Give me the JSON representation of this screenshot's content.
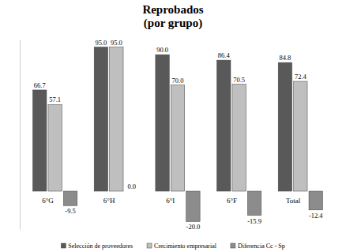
{
  "chart_data": {
    "type": "bar",
    "title": "Reprobados",
    "subtitle": "(por grupo)",
    "categories": [
      "6°G",
      "6°H",
      "6°I",
      "6°F",
      "Total"
    ],
    "series": [
      {
        "name": "Selección de proveedores",
        "color": "#595959",
        "values": [
          66.7,
          95.0,
          90.0,
          86.4,
          84.8
        ],
        "value_labels": [
          "66.7",
          "95.0",
          "90.0",
          "86.4",
          "84.8"
        ]
      },
      {
        "name": "Crecimiento empresarial",
        "color": "#bfbfbf",
        "values": [
          57.1,
          95.0,
          70.0,
          70.5,
          72.4
        ],
        "value_labels": [
          "57.1",
          "95.0",
          "70.0",
          "70.5",
          "72.4"
        ]
      },
      {
        "name": "Diferencia Cc - Sp",
        "color": "#8c8c8c",
        "values": [
          -9.5,
          0.0,
          -20.0,
          -15.9,
          -12.4
        ],
        "value_labels": [
          "-9.5",
          "0.0",
          "-20.0",
          "-15.9",
          "-12.4"
        ]
      }
    ],
    "ylim": [
      -25,
      100
    ],
    "data_labels": true,
    "tick_labels": "x",
    "legend": "bottom"
  }
}
